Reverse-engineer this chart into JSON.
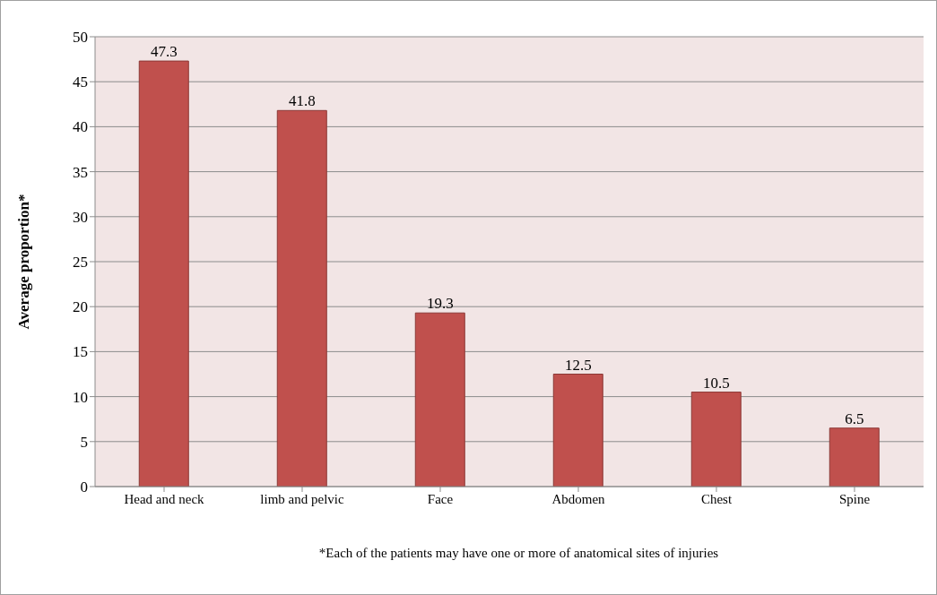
{
  "chart_data": {
    "type": "bar",
    "ylabel": "Average proportion*",
    "categories": [
      "Head and neck",
      "limb and pelvic",
      "Face",
      "Abdomen",
      "Chest",
      "Spine"
    ],
    "values": [
      47.3,
      41.8,
      19.3,
      12.5,
      10.5,
      6.5
    ],
    "color": "#c0504d",
    "ylim": [
      0,
      50
    ],
    "yticks": [
      0,
      5,
      10,
      15,
      20,
      25,
      30,
      35,
      40,
      45,
      50
    ],
    "grid": "y",
    "data_labels": true,
    "annotations": [
      "*Each of the patients may have one or more of anatomical sites of injuries"
    ]
  }
}
